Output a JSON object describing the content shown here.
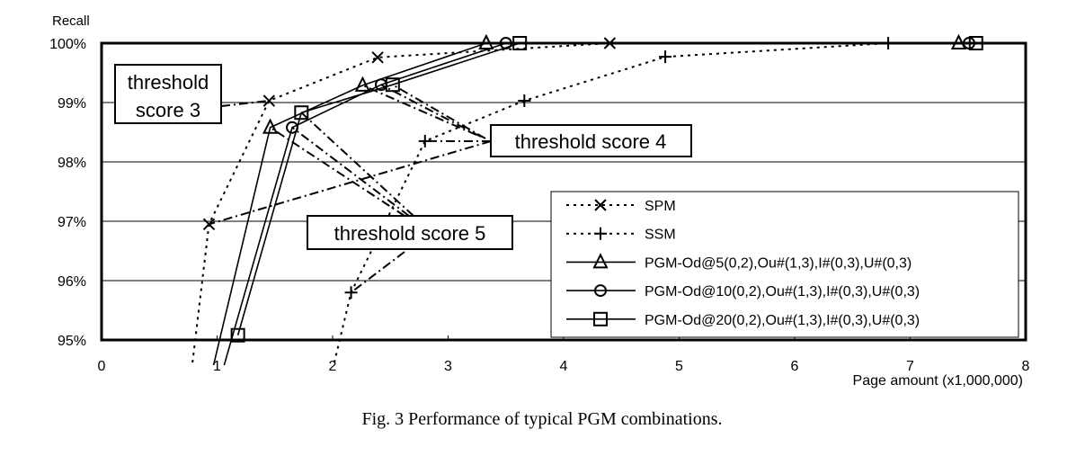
{
  "chart_data": {
    "type": "line",
    "title": "",
    "caption": "Fig. 3 Performance of typical PGM combinations.",
    "xlabel": "Page amount (x1,000,000)",
    "ylabel": "Recall",
    "xlim": [
      0,
      8
    ],
    "ylim": [
      95,
      100
    ],
    "xticks": [
      "0",
      "1",
      "2",
      "3",
      "4",
      "5",
      "6",
      "7",
      "8"
    ],
    "yticks": [
      "95%",
      "96%",
      "97%",
      "98%",
      "99%",
      "100%"
    ],
    "grid": "horizontal",
    "legend_position": "bottom-right",
    "series": [
      {
        "name": "SPM",
        "style": "dotted",
        "marker": "x",
        "x": [
          0.78,
          0.93,
          1.45,
          2.39,
          4.4
        ],
        "y": [
          94.5,
          96.95,
          99.03,
          99.76,
          100
        ]
      },
      {
        "name": "SSM",
        "style": "dotted",
        "marker": "plus",
        "x": [
          2.0,
          2.16,
          2.8,
          3.66,
          4.88,
          6.81
        ],
        "y": [
          94.5,
          95.8,
          98.35,
          99.03,
          99.77,
          100
        ]
      },
      {
        "name": "PGM-Od@5(0,2),Ou#(1,3),I#(0,3),U#(0,3)",
        "style": "solid",
        "marker": "triangle",
        "x": [
          0.96,
          1.46,
          2.26,
          3.33,
          7.42
        ],
        "y": [
          94.5,
          98.58,
          99.29,
          100,
          100
        ]
      },
      {
        "name": "PGM-Od@10(0,2),Ou#(1,3),I#(0,3),U#(0,3)",
        "style": "solid",
        "marker": "circle",
        "x": [
          1.05,
          1.65,
          2.42,
          3.5,
          7.51
        ],
        "y": [
          94.5,
          98.58,
          99.3,
          100,
          100
        ]
      },
      {
        "name": "PGM-Od@20(0,2),Ou#(1,3),I#(0,3),U#(0,3)",
        "style": "solid",
        "marker": "square",
        "x": [
          1.18,
          1.73,
          2.52,
          3.62,
          7.57
        ],
        "y": [
          95.08,
          98.83,
          99.3,
          100,
          100
        ]
      }
    ],
    "annotations": [
      {
        "label_line1": "threshold",
        "label_line2": "score 3"
      },
      {
        "label": "threshold score 4"
      },
      {
        "label": "threshold score 5"
      }
    ]
  }
}
